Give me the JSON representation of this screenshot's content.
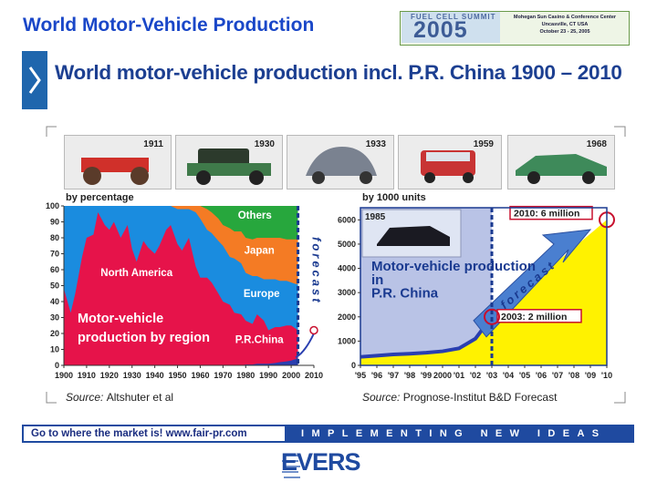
{
  "slide": {
    "title": "World Motor-Vehicle Production",
    "headline": "World motor-vehicle production incl. P.R. China 1900 – 2010"
  },
  "summit": {
    "name": "FUEL CELL SUMMIT",
    "year": "2005",
    "venue": "Mohegan Sun Casino & Conference Center",
    "city": "Uncasville, CT USA",
    "dates": "October 23 - 25, 2005"
  },
  "photos": [
    "1911",
    "1930",
    "1933",
    "1959",
    "1968"
  ],
  "chart_data": [
    {
      "type": "area",
      "ylabel": "by percentage",
      "ylim": [
        0,
        100
      ],
      "yticks": [
        "0",
        "10",
        "20",
        "30",
        "40",
        "50",
        "60",
        "70",
        "80",
        "90",
        "100"
      ],
      "xticks": [
        "1900",
        "1910",
        "1920",
        "1930",
        "1940",
        "1950",
        "1960",
        "1970",
        "1980",
        "1990",
        "2000",
        "2010"
      ],
      "x": [
        1900,
        1903,
        1905,
        1908,
        1910,
        1913,
        1915,
        1918,
        1920,
        1922,
        1925,
        1928,
        1930,
        1932,
        1935,
        1937,
        1940,
        1942,
        1945,
        1947,
        1950,
        1952,
        1955,
        1958,
        1960,
        1963,
        1965,
        1968,
        1970,
        1973,
        1975,
        1978,
        1980,
        1983,
        1985,
        1988,
        1990,
        1993,
        1995,
        1998,
        2000,
        2002,
        2003
      ],
      "stacked_upper_boundaries": [
        {
          "name": "P.R.China",
          "values": [
            0,
            0,
            0,
            0,
            0,
            0,
            0,
            0,
            0,
            0,
            0,
            0,
            0,
            0,
            0,
            0,
            0,
            0,
            0,
            0,
            0,
            0,
            0,
            0,
            0,
            0,
            0,
            0,
            0,
            0,
            0,
            0,
            0.5,
            0.5,
            1,
            1,
            1,
            1.5,
            2,
            2.5,
            3,
            4,
            5
          ]
        },
        {
          "name": "North America",
          "values": [
            48,
            33,
            45,
            68,
            80,
            82,
            96,
            88,
            85,
            90,
            80,
            88,
            73,
            65,
            78,
            74,
            70,
            75,
            85,
            88,
            76,
            72,
            80,
            62,
            55,
            55,
            52,
            45,
            40,
            38,
            33,
            32,
            28,
            26,
            32,
            28,
            22,
            24,
            24,
            25,
            25,
            23,
            22
          ]
        },
        {
          "name": "Europe",
          "values": [
            100,
            100,
            100,
            100,
            100,
            100,
            100,
            100,
            100,
            100,
            100,
            100,
            100,
            100,
            100,
            100,
            100,
            100,
            100,
            100,
            98,
            98,
            98,
            96,
            92,
            85,
            83,
            78,
            75,
            68,
            67,
            64,
            58,
            56,
            56,
            54,
            54,
            54,
            53,
            53,
            52,
            51,
            51
          ]
        },
        {
          "name": "Japan",
          "values": [
            100,
            100,
            100,
            100,
            100,
            100,
            100,
            100,
            100,
            100,
            100,
            100,
            100,
            100,
            100,
            100,
            100,
            100,
            100,
            100,
            100,
            100,
            100,
            100,
            100,
            98,
            96,
            92,
            88,
            86,
            84,
            84,
            80,
            79,
            80,
            80,
            80,
            80,
            80,
            79,
            79,
            79,
            79
          ]
        },
        {
          "name": "Others",
          "values": [
            100,
            100,
            100,
            100,
            100,
            100,
            100,
            100,
            100,
            100,
            100,
            100,
            100,
            100,
            100,
            100,
            100,
            100,
            100,
            100,
            100,
            100,
            100,
            100,
            100,
            100,
            100,
            100,
            100,
            100,
            100,
            100,
            100,
            100,
            100,
            100,
            100,
            100,
            100,
            100,
            100,
            100,
            100
          ]
        }
      ],
      "region_labels": [
        "Others",
        "Japan",
        "North America",
        "Europe",
        "P.R.China"
      ],
      "annotation": "Motor-vehicle production by region",
      "forecast_label": "forecast",
      "forecast_start": 2003
    },
    {
      "type": "area",
      "ylabel": "by 1000 units",
      "ylim": [
        0,
        6500
      ],
      "yticks": [
        "0",
        "1000",
        "2000",
        "3000",
        "4000",
        "5000",
        "6000"
      ],
      "xticks": [
        "'95",
        "'96",
        "'97",
        "'98",
        "'99",
        "2000",
        "'01",
        "'02",
        "'03",
        "'04",
        "'05",
        "'06",
        "'07",
        "'08",
        "'09",
        "'10"
      ],
      "x": [
        "'95",
        "'96",
        "'97",
        "'98",
        "'99",
        "2000",
        "'01",
        "'02",
        "'03"
      ],
      "values": [
        350,
        400,
        450,
        480,
        520,
        580,
        700,
        1100,
        2000
      ],
      "forecast_x": [
        "'03",
        "'10"
      ],
      "forecast_values": [
        2000,
        6000
      ],
      "forecast_label": "forecast",
      "photo_year": "1985",
      "title": "Motor-vehicle production in P.R. China",
      "callouts": [
        "2010: 6 million",
        "2003: 2 million"
      ]
    }
  ],
  "sources": {
    "left_label": "Source:",
    "left_text": "Altshuter et al",
    "right_label": "Source:",
    "right_text": "Prognose-Institut B&D Forecast"
  },
  "footer": {
    "left": "Go to where the market is!   www.fair-pr.com",
    "right": "IMPLEMENTING NEW IDEAS",
    "logo": "EVERS"
  },
  "colors": {
    "brand_blue": "#1f4aa0",
    "north_america": "#e6134a",
    "europe": "#1a8cdf",
    "japan": "#f47b24",
    "others": "#27a73d",
    "china_area": "#2a3fb0",
    "forecast_fill": "#fff200",
    "china_photo_bg": "#b9c3e6"
  }
}
